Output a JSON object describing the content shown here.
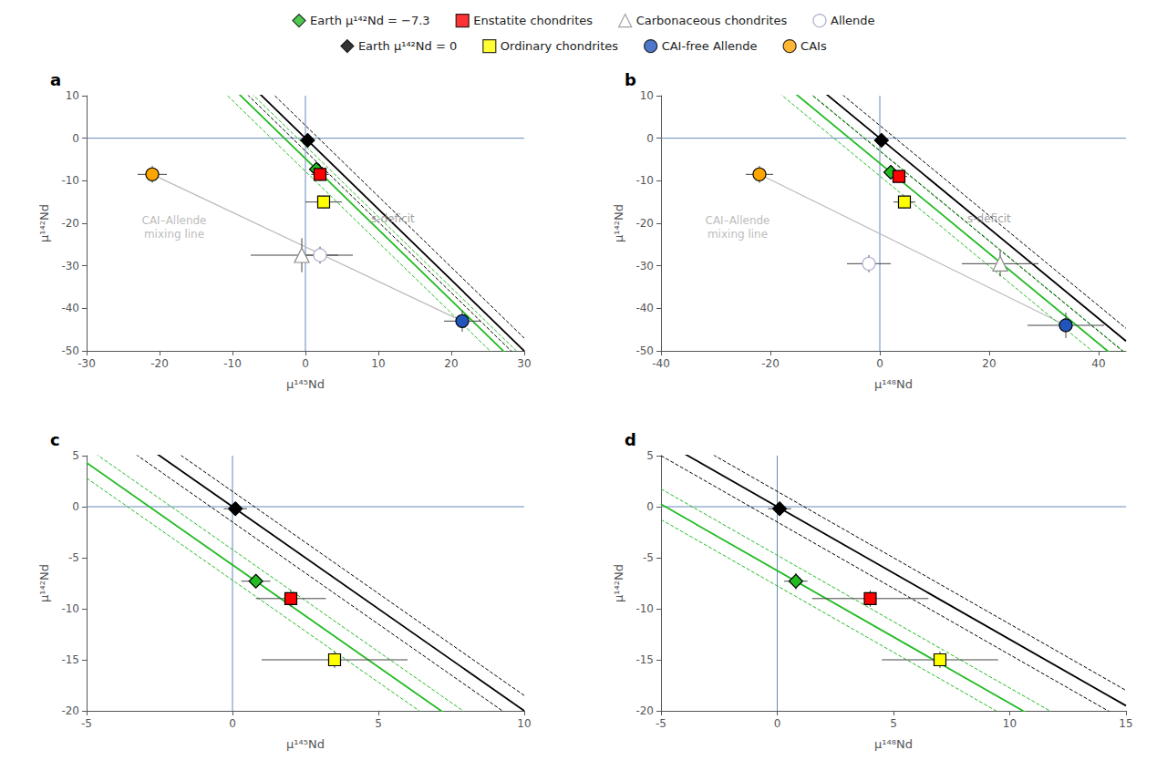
{
  "chart_data": [
    {
      "type": "scatter",
      "title": "a",
      "xlabel": "μ¹⁴⁵Nd",
      "ylabel": "μ¹⁴²Nd",
      "xlim": [
        -30,
        30
      ],
      "ylim": [
        -50,
        10
      ],
      "xticks": [
        -30,
        -20,
        -10,
        0,
        10,
        20,
        30
      ],
      "yticks": [
        -50,
        -40,
        -30,
        -20,
        -10,
        0,
        10
      ],
      "grid": false,
      "reference_lines": {
        "x": 0,
        "y": 0,
        "color": "#6688bb"
      },
      "error_color": "#444444",
      "lines": [
        {
          "slope": -1.667,
          "intercept": 0.0,
          "color": "black",
          "line_style": "solid"
        },
        {
          "slope": -1.667,
          "intercept": -3.0,
          "color": "black",
          "line_style": "dashed"
        },
        {
          "slope": -1.667,
          "intercept": 3.0,
          "color": "black",
          "line_style": "dashed"
        },
        {
          "slope": -1.667,
          "intercept": -4.7995,
          "color": "#22bb22",
          "line_style": "solid"
        },
        {
          "slope": -1.667,
          "intercept": -7.7995,
          "color": "#22bb22",
          "line_style": "dashed"
        },
        {
          "slope": -1.667,
          "intercept": -1.7995,
          "color": "#22bb22",
          "line_style": "dashed"
        }
      ],
      "mixing_line": {
        "x": [
          -21.0,
          21.5
        ],
        "y": [
          -8.5,
          -43.0
        ],
        "color": "#bbbbbb"
      },
      "points": [
        {
          "x": 0.3,
          "y": -0.5,
          "xerr": 1.0,
          "yerr": 1.5,
          "marker": "diamond",
          "color": "black",
          "edgecolor": "black"
        },
        {
          "x": 1.5,
          "y": -7.3,
          "xerr": 0.8,
          "yerr": 1.5,
          "marker": "diamond",
          "color": "#22bb22",
          "edgecolor": "black"
        },
        {
          "x": 2.0,
          "y": -8.5,
          "xerr": 1.2,
          "yerr": 1.5,
          "marker": "square",
          "color": "red",
          "edgecolor": "black"
        },
        {
          "x": 2.5,
          "y": -15.0,
          "xerr": 2.5,
          "yerr": 1.5,
          "marker": "square",
          "color": "yellow",
          "edgecolor": "black"
        },
        {
          "x": -0.5,
          "y": -27.5,
          "xerr": 7.0,
          "yerr": 4.0,
          "marker": "triangle",
          "color": "white",
          "edgecolor": "#888888"
        },
        {
          "x": 2.0,
          "y": -27.5,
          "xerr": 2.5,
          "yerr": 2.0,
          "marker": "circle",
          "color": "white",
          "edgecolor": "#aaaacc"
        },
        {
          "x": 21.5,
          "y": -43.0,
          "xerr": 2.5,
          "yerr": 2.5,
          "marker": "circle",
          "color": "#2255bb",
          "edgecolor": "black"
        },
        {
          "x": -21.0,
          "y": -8.5,
          "xerr": 2.0,
          "yerr": 2.0,
          "marker": "circle",
          "color": "orange",
          "edgecolor": "black"
        }
      ],
      "annotations": [
        {
          "x": 9,
          "y": -19,
          "text": "s-deficit",
          "color": "#888888",
          "align": "left"
        },
        {
          "x": -18,
          "y": -21,
          "text": "CAI–Allende\nmixing line",
          "color": "#aaaaaa",
          "align": "center"
        }
      ]
    },
    {
      "type": "scatter",
      "title": "b",
      "xlabel": "μ¹⁴⁸Nd",
      "ylabel": "μ¹⁴²Nd",
      "xlim": [
        -40,
        45
      ],
      "ylim": [
        -50,
        10
      ],
      "xticks": [
        -40,
        -20,
        0,
        20,
        40
      ],
      "yticks": [
        -50,
        -40,
        -30,
        -20,
        -10,
        0,
        10
      ],
      "grid": false,
      "reference_lines": {
        "x": 0,
        "y": 0,
        "color": "#6688bb"
      },
      "error_color": "#444444",
      "lines": [
        {
          "slope": -1.06,
          "intercept": 0.0,
          "color": "black",
          "line_style": "solid"
        },
        {
          "slope": -1.06,
          "intercept": -3.0,
          "color": "black",
          "line_style": "dashed"
        },
        {
          "slope": -1.06,
          "intercept": 3.0,
          "color": "black",
          "line_style": "dashed"
        },
        {
          "slope": -1.06,
          "intercept": -5.88,
          "color": "#22bb22",
          "line_style": "solid"
        },
        {
          "slope": -1.06,
          "intercept": -8.88,
          "color": "#22bb22",
          "line_style": "dashed"
        },
        {
          "slope": -1.06,
          "intercept": -2.88,
          "color": "#22bb22",
          "line_style": "dashed"
        }
      ],
      "mixing_line": {
        "x": [
          -22.0,
          34.0
        ],
        "y": [
          -8.5,
          -44.0
        ],
        "color": "#bbbbbb"
      },
      "points": [
        {
          "x": 0.3,
          "y": -0.5,
          "xerr": 1.2,
          "yerr": 1.5,
          "marker": "diamond",
          "color": "black",
          "edgecolor": "black"
        },
        {
          "x": 2.0,
          "y": -8.0,
          "xerr": 1.2,
          "yerr": 1.5,
          "marker": "diamond",
          "color": "#22bb22",
          "edgecolor": "black"
        },
        {
          "x": 3.5,
          "y": -9.0,
          "xerr": 1.5,
          "yerr": 1.5,
          "marker": "square",
          "color": "red",
          "edgecolor": "black"
        },
        {
          "x": 4.5,
          "y": -15.0,
          "xerr": 2.0,
          "yerr": 1.5,
          "marker": "square",
          "color": "yellow",
          "edgecolor": "black"
        },
        {
          "x": 22.0,
          "y": -29.5,
          "xerr": 7.0,
          "yerr": 3.0,
          "marker": "triangle",
          "color": "white",
          "edgecolor": "#888888"
        },
        {
          "x": -2.0,
          "y": -29.5,
          "xerr": 4.0,
          "yerr": 2.0,
          "marker": "circle",
          "color": "white",
          "edgecolor": "#aaaacc"
        },
        {
          "x": 34.0,
          "y": -44.0,
          "xerr": 7.0,
          "yerr": 3.0,
          "marker": "circle",
          "color": "#2255bb",
          "edgecolor": "black"
        },
        {
          "x": -22.0,
          "y": -8.5,
          "xerr": 2.5,
          "yerr": 2.0,
          "marker": "circle",
          "color": "orange",
          "edgecolor": "black"
        }
      ],
      "annotations": [
        {
          "x": 16,
          "y": -19,
          "text": "s-deficit",
          "color": "#888888",
          "align": "left"
        },
        {
          "x": -26,
          "y": -21,
          "text": "CAI–Allende\nmixing line",
          "color": "#aaaaaa",
          "align": "center"
        }
      ]
    },
    {
      "type": "scatter",
      "title": "c",
      "xlabel": "μ¹⁴⁵Nd",
      "ylabel": "μ¹⁴²Nd",
      "xlim": [
        -5,
        10
      ],
      "ylim": [
        -20,
        5
      ],
      "xticks": [
        -5,
        0,
        5,
        10
      ],
      "yticks": [
        -20,
        -15,
        -10,
        -5,
        0,
        5
      ],
      "grid": false,
      "reference_lines": {
        "x": 0,
        "y": 0,
        "color": "#6688bb"
      },
      "error_color": "#444444",
      "lines": [
        {
          "slope": -2.0,
          "intercept": 0.0,
          "color": "black",
          "line_style": "solid"
        },
        {
          "slope": -2.0,
          "intercept": -1.5,
          "color": "black",
          "line_style": "dashed"
        },
        {
          "slope": -2.0,
          "intercept": 1.5,
          "color": "black",
          "line_style": "dashed"
        },
        {
          "slope": -2.0,
          "intercept": -5.7,
          "color": "#22bb22",
          "line_style": "solid"
        },
        {
          "slope": -2.0,
          "intercept": -7.2,
          "color": "#22bb22",
          "line_style": "dashed"
        },
        {
          "slope": -2.0,
          "intercept": -4.2,
          "color": "#22bb22",
          "line_style": "dashed"
        }
      ],
      "points": [
        {
          "x": 0.1,
          "y": -0.2,
          "xerr": 0.4,
          "yerr": 0.5,
          "marker": "diamond",
          "color": "black",
          "edgecolor": "black"
        },
        {
          "x": 0.8,
          "y": -7.3,
          "xerr": 0.5,
          "yerr": 0.5,
          "marker": "diamond",
          "color": "#22bb22",
          "edgecolor": "black"
        },
        {
          "x": 2.0,
          "y": -9.0,
          "xerr": 1.2,
          "yerr": 0.8,
          "marker": "square",
          "color": "red",
          "edgecolor": "black"
        },
        {
          "x": 3.5,
          "y": -15.0,
          "xerr": 2.5,
          "yerr": 0.8,
          "marker": "square",
          "color": "yellow",
          "edgecolor": "black"
        }
      ],
      "annotations": []
    },
    {
      "type": "scatter",
      "title": "d",
      "xlabel": "μ¹⁴⁸Nd",
      "ylabel": "μ¹⁴²Nd",
      "xlim": [
        -5,
        15
      ],
      "ylim": [
        -20,
        5
      ],
      "xticks": [
        -5,
        0,
        5,
        10,
        15
      ],
      "yticks": [
        -20,
        -15,
        -10,
        -5,
        0,
        5
      ],
      "grid": false,
      "reference_lines": {
        "x": 0,
        "y": 0,
        "color": "#6688bb"
      },
      "error_color": "#444444",
      "lines": [
        {
          "slope": -1.3,
          "intercept": 0.0,
          "color": "black",
          "line_style": "solid"
        },
        {
          "slope": -1.3,
          "intercept": -1.5,
          "color": "black",
          "line_style": "dashed"
        },
        {
          "slope": -1.3,
          "intercept": 1.5,
          "color": "black",
          "line_style": "dashed"
        },
        {
          "slope": -1.3,
          "intercept": -6.26,
          "color": "#22bb22",
          "line_style": "solid"
        },
        {
          "slope": -1.3,
          "intercept": -7.76,
          "color": "#22bb22",
          "line_style": "dashed"
        },
        {
          "slope": -1.3,
          "intercept": -4.76,
          "color": "#22bb22",
          "line_style": "dashed"
        }
      ],
      "points": [
        {
          "x": 0.1,
          "y": -0.2,
          "xerr": 0.5,
          "yerr": 0.5,
          "marker": "diamond",
          "color": "black",
          "edgecolor": "black"
        },
        {
          "x": 0.8,
          "y": -7.3,
          "xerr": 0.5,
          "yerr": 0.8,
          "marker": "diamond",
          "color": "#22bb22",
          "edgecolor": "black"
        },
        {
          "x": 4.0,
          "y": -9.0,
          "xerr": 2.5,
          "yerr": 0.8,
          "marker": "square",
          "color": "red",
          "edgecolor": "black"
        },
        {
          "x": 7.0,
          "y": -15.0,
          "xerr": 2.5,
          "yerr": 0.8,
          "marker": "square",
          "color": "yellow",
          "edgecolor": "black"
        }
      ],
      "annotations": []
    }
  ],
  "legend_entries": [
    [
      {
        "label": "Earth μ¹⁴²Nd = −7.3",
        "marker": "diamond",
        "color": "#22bb22",
        "edgecolor": "black"
      },
      {
        "label": "Enstatite chondrites",
        "marker": "square",
        "color": "red",
        "edgecolor": "black"
      },
      {
        "label": "Carbonaceous chondrites",
        "marker": "triangle",
        "color": "white",
        "edgecolor": "#888888"
      },
      {
        "label": "Allende",
        "marker": "circle",
        "color": "white",
        "edgecolor": "#9999bb"
      }
    ],
    [
      {
        "label": "Earth μ¹⁴²Nd = 0",
        "marker": "diamond",
        "color": "black",
        "edgecolor": "black"
      },
      {
        "label": "Ordinary chondrites",
        "marker": "square",
        "color": "yellow",
        "edgecolor": "black"
      },
      {
        "label": "CAI-free Allende",
        "marker": "circle",
        "color": "#2255bb",
        "edgecolor": "black"
      },
      {
        "label": "CAIs",
        "marker": "circle",
        "color": "orange",
        "edgecolor": "black"
      }
    ]
  ]
}
